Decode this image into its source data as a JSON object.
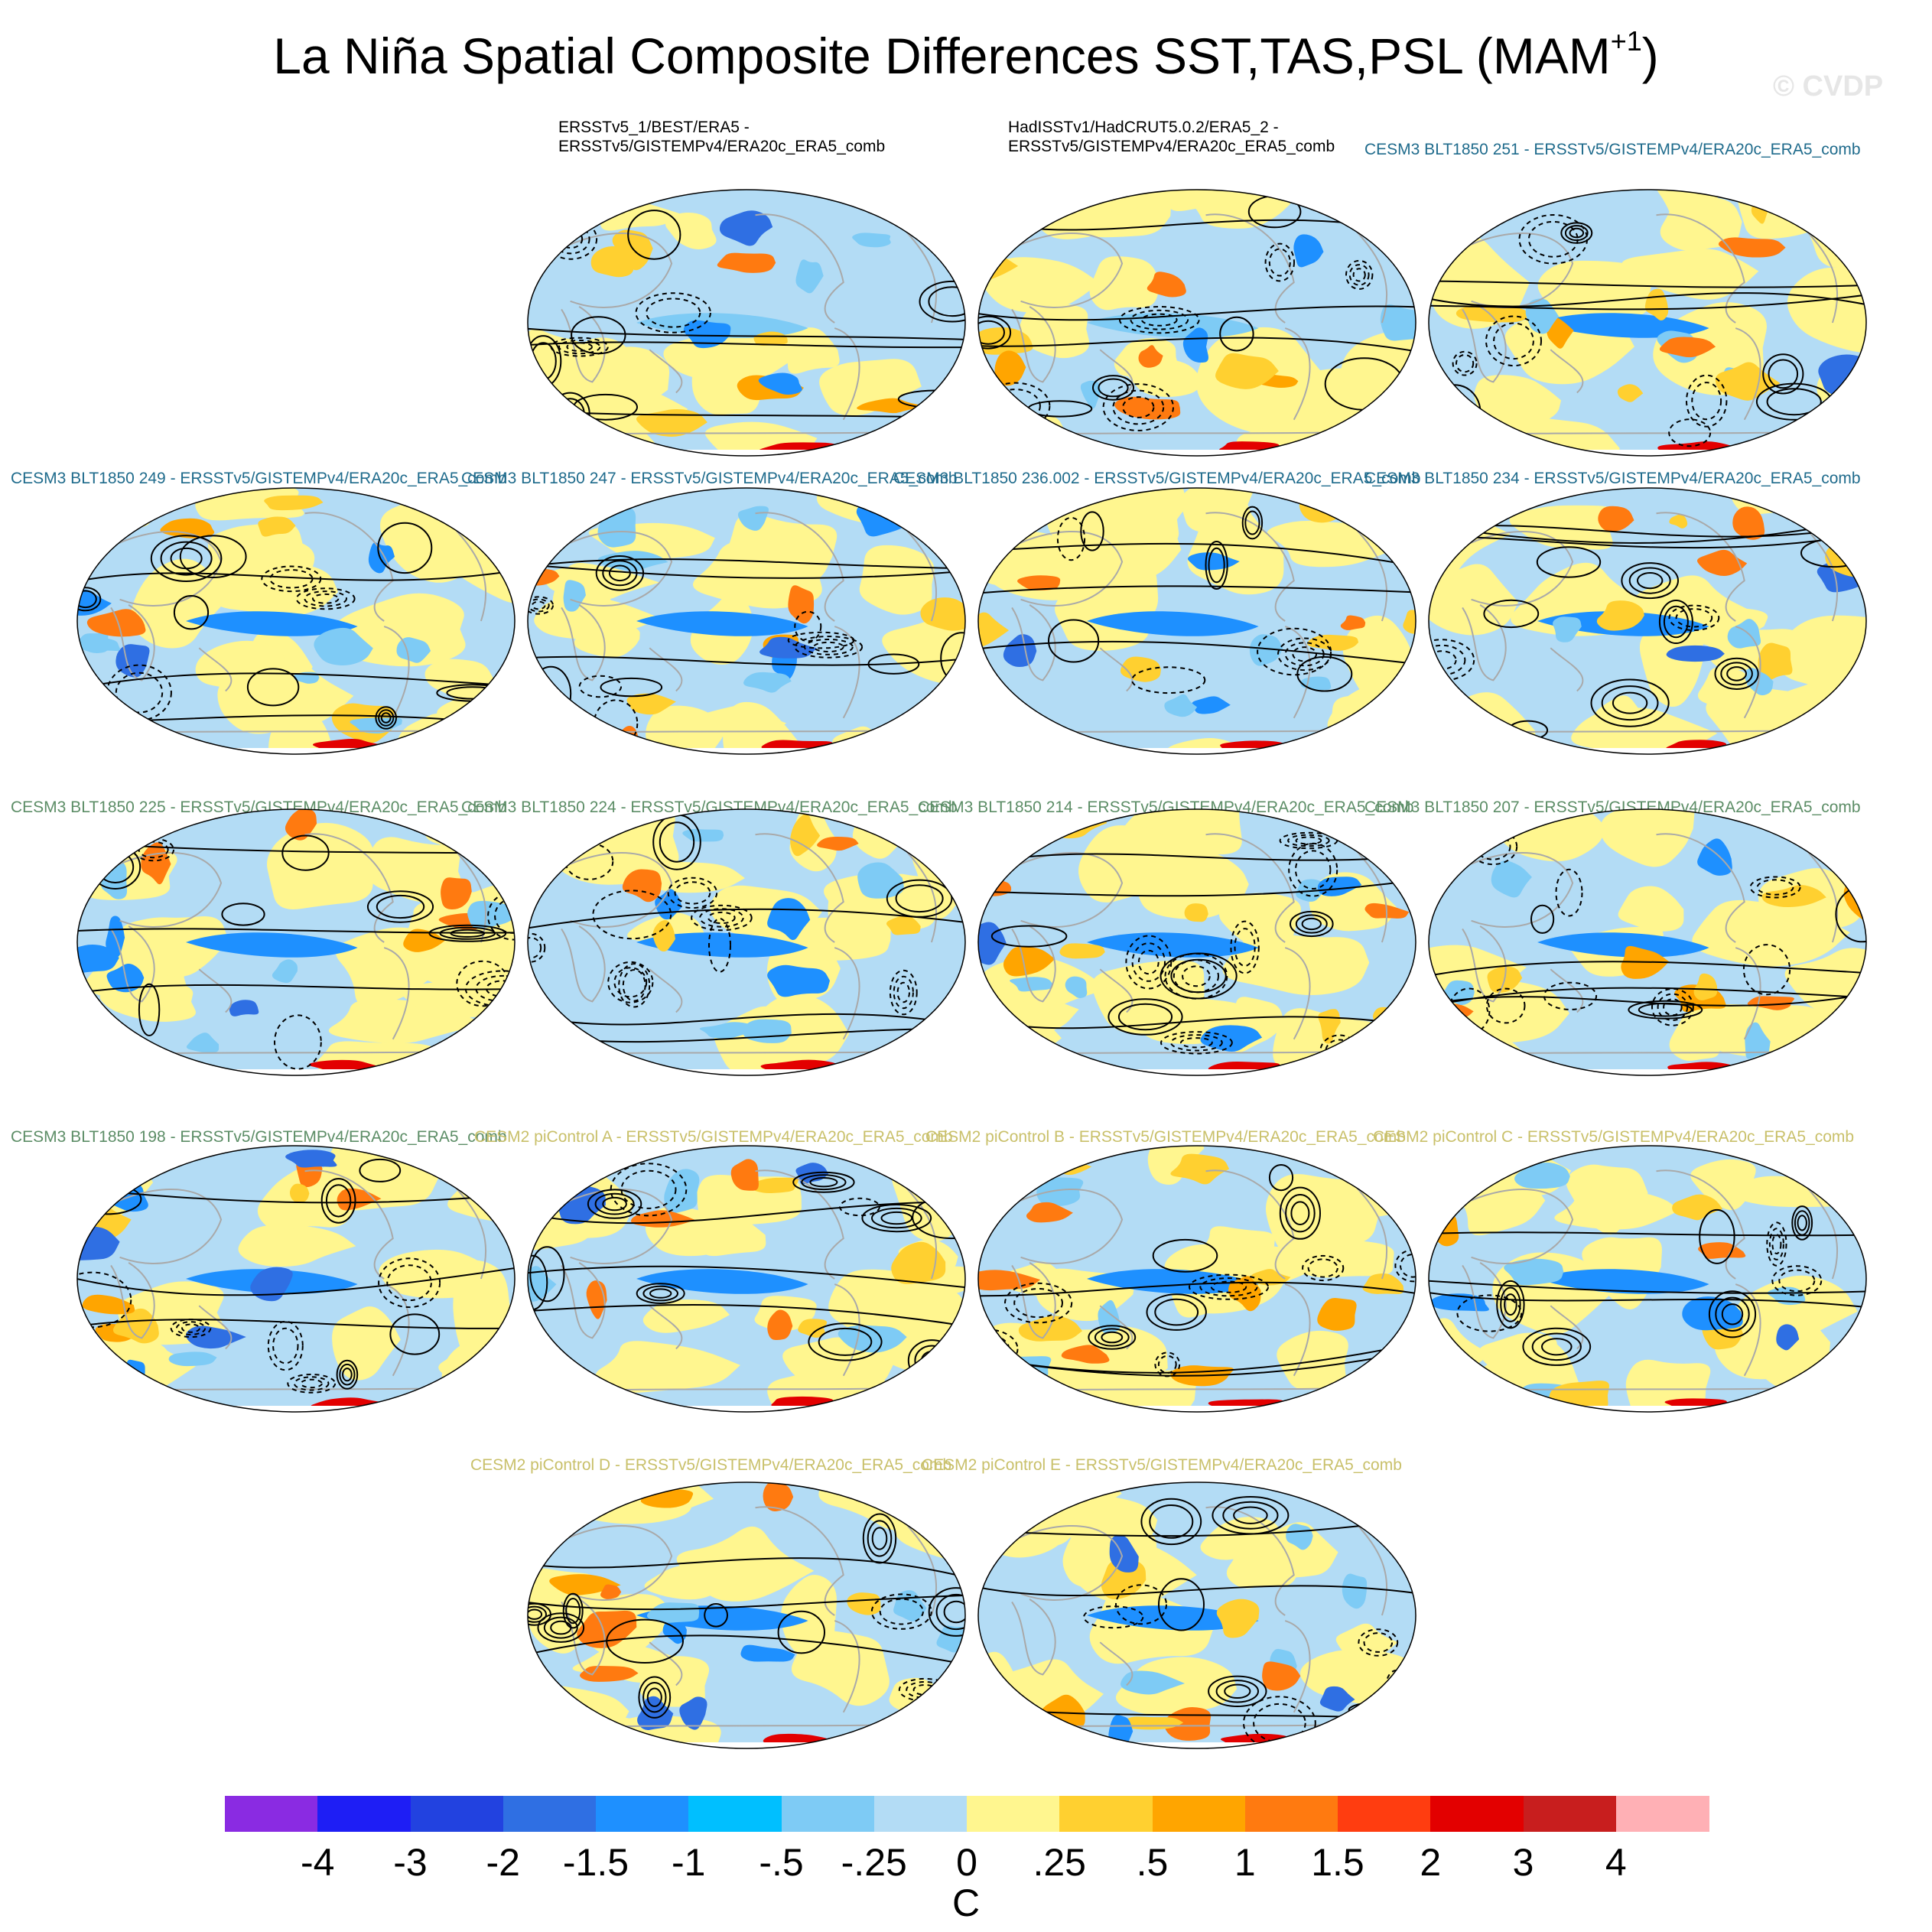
{
  "title": {
    "main": "La Niña Spatial Composite Differences SST,TAS,PSL (MAM",
    "superscript": "+1",
    "close": ")"
  },
  "watermark": "© CVDP",
  "label_colors": {
    "obs": "#000000",
    "cesm3_high": "#1f6b8c",
    "cesm3_low": "#5c8d66",
    "cesm2": "#c9c06a"
  },
  "panels": [
    {
      "id": "p1",
      "group": "obs",
      "lines": [
        "ERSSTv5_1/BEST/ERA5 -",
        "ERSSTv5/GISTEMPv4/ERA20c_ERA5_comb"
      ]
    },
    {
      "id": "p2",
      "group": "obs",
      "lines": [
        "HadISSTv1/HadCRUT5.0.2/ERA5_2 -",
        "ERSSTv5/GISTEMPv4/ERA20c_ERA5_comb"
      ]
    },
    {
      "id": "p3",
      "group": "cesm3_high",
      "lines": [
        "CESM3 BLT1850 251 - ERSSTv5/GISTEMPv4/ERA20c_ERA5_comb"
      ]
    },
    {
      "id": "p4",
      "group": "cesm3_high",
      "lines": [
        "CESM3 BLT1850 249 - ERSSTv5/GISTEMPv4/ERA20c_ERA5_comb"
      ]
    },
    {
      "id": "p5",
      "group": "cesm3_high",
      "lines": [
        "CESM3 BLT1850 247 - ERSSTv5/GISTEMPv4/ERA20c_ERA5_comb"
      ]
    },
    {
      "id": "p6",
      "group": "cesm3_high",
      "lines": [
        "CESM3 BLT1850 236.002 - ERSSTv5/GISTEMPv4/ERA20c_ERA5_comb"
      ]
    },
    {
      "id": "p7",
      "group": "cesm3_high",
      "lines": [
        "CESM3 BLT1850 234 - ERSSTv5/GISTEMPv4/ERA20c_ERA5_comb"
      ]
    },
    {
      "id": "p8",
      "group": "cesm3_low",
      "lines": [
        "CESM3 BLT1850 225 - ERSSTv5/GISTEMPv4/ERA20c_ERA5_comb"
      ]
    },
    {
      "id": "p9",
      "group": "cesm3_low",
      "lines": [
        "CESM3 BLT1850 224 - ERSSTv5/GISTEMPv4/ERA20c_ERA5_comb"
      ]
    },
    {
      "id": "p10",
      "group": "cesm3_low",
      "lines": [
        "CESM3 BLT1850 214 - ERSSTv5/GISTEMPv4/ERA20c_ERA5_comb"
      ]
    },
    {
      "id": "p11",
      "group": "cesm3_low",
      "lines": [
        "CESM3 BLT1850 207 - ERSSTv5/GISTEMPv4/ERA20c_ERA5_comb"
      ]
    },
    {
      "id": "p12",
      "group": "cesm3_low",
      "lines": [
        "CESM3 BLT1850 198 - ERSSTv5/GISTEMPv4/ERA20c_ERA5_comb"
      ]
    },
    {
      "id": "p13",
      "group": "cesm2",
      "lines": [
        "CESM2 piControl A - ERSSTv5/GISTEMPv4/ERA20c_ERA5_comb"
      ]
    },
    {
      "id": "p14",
      "group": "cesm2",
      "lines": [
        "CESM2 piControl B - ERSSTv5/GISTEMPv4/ERA20c_ERA5_comb"
      ]
    },
    {
      "id": "p15",
      "group": "cesm2",
      "lines": [
        "CESM2 piControl C - ERSSTv5/GISTEMPv4/ERA20c_ERA5_comb"
      ]
    },
    {
      "id": "p16",
      "group": "cesm2",
      "lines": [
        "CESM2 piControl D - ERSSTv5/GISTEMPv4/ERA20c_ERA5_comb"
      ]
    },
    {
      "id": "p17",
      "group": "cesm2",
      "lines": [
        "CESM2 piControl E - ERSSTv5/GISTEMPv4/ERA20c_ERA5_comb"
      ]
    }
  ],
  "colorbar": {
    "unit": "C",
    "labels": [
      "-4",
      "-3",
      "-2",
      "-1.5",
      "-1",
      "-.5",
      "-.25",
      "0",
      ".25",
      ".5",
      "1",
      "1.5",
      "2",
      "3",
      "4"
    ],
    "colors": [
      "#8a2be2",
      "#1e1ef5",
      "#2242e0",
      "#2f6fe3",
      "#1e90ff",
      "#00bfff",
      "#7ecbf5",
      "#b3dcf5",
      "#fff68f",
      "#ffd030",
      "#ffa500",
      "#ff7a10",
      "#ff3d10",
      "#e30000",
      "#c81e1e",
      "#ffb0b5"
    ]
  },
  "map_palette": {
    "ocean_cool": "#b3dcf5",
    "ocean_warm": "#fff68f",
    "cool_mid": "#7ecbf5",
    "cool_strong": "#1e90ff",
    "cool_deep": "#2f6fe3",
    "warm_mid": "#ffd030",
    "warm_strong": "#ffa500",
    "warm_deep": "#ff7a10",
    "hot": "#e30000",
    "coast": "#a9a9a9",
    "contour": "#000000"
  }
}
